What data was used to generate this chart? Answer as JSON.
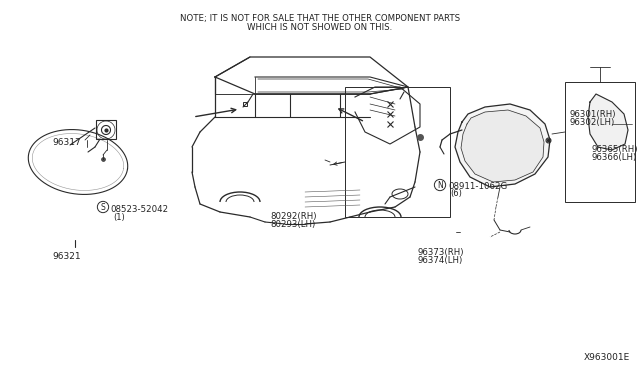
{
  "bg_color": "#ffffff",
  "fig_width": 6.4,
  "fig_height": 3.72,
  "dpi": 100,
  "note_line1": "NOTE; IT IS NOT FOR SALE THAT THE OTHER COMPONENT PARTS",
  "note_line2": "WHICH IS NOT SHOWED ON THIS.",
  "diagram_id": "X963001E",
  "lc": "#2a2a2a"
}
